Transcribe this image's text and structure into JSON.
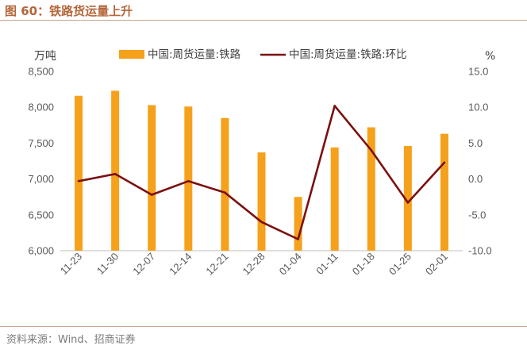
{
  "header": {
    "title": "图 60：铁路货运量上升"
  },
  "footer": {
    "source": "资料来源：Wind、招商证券"
  },
  "chart_data": {
    "type": "bar",
    "categories": [
      "11-23",
      "11-30",
      "12-07",
      "12-14",
      "12-21",
      "12-28",
      "01-04",
      "01-11",
      "01-18",
      "01-25",
      "02-01"
    ],
    "series": [
      {
        "name": "中国:周货运量:铁路",
        "type": "bar",
        "axis": "left",
        "color": "#f5a11c",
        "values": [
          8160,
          8230,
          8030,
          8010,
          7850,
          7370,
          6750,
          7440,
          7720,
          7460,
          7630
        ]
      },
      {
        "name": "中国:周货运量:铁路:环比",
        "type": "line",
        "axis": "right",
        "color": "#7b1010",
        "values": [
          -0.3,
          0.7,
          -2.2,
          -0.3,
          -1.9,
          -6.0,
          -8.4,
          10.2,
          4.0,
          -3.3,
          2.3
        ]
      }
    ],
    "y_left": {
      "label": "万吨",
      "ylim": [
        6000,
        8500
      ],
      "ticks": [
        "6,000",
        "6,500",
        "7,000",
        "7,500",
        "8,000",
        "8,500"
      ]
    },
    "y_right": {
      "label": "%",
      "ylim": [
        -10,
        15
      ],
      "ticks": [
        "-10.0",
        "-5.0",
        "0.0",
        "5.0",
        "10.0",
        "15.0"
      ]
    },
    "xlabel": "",
    "grid": false,
    "legend_position": "top"
  }
}
